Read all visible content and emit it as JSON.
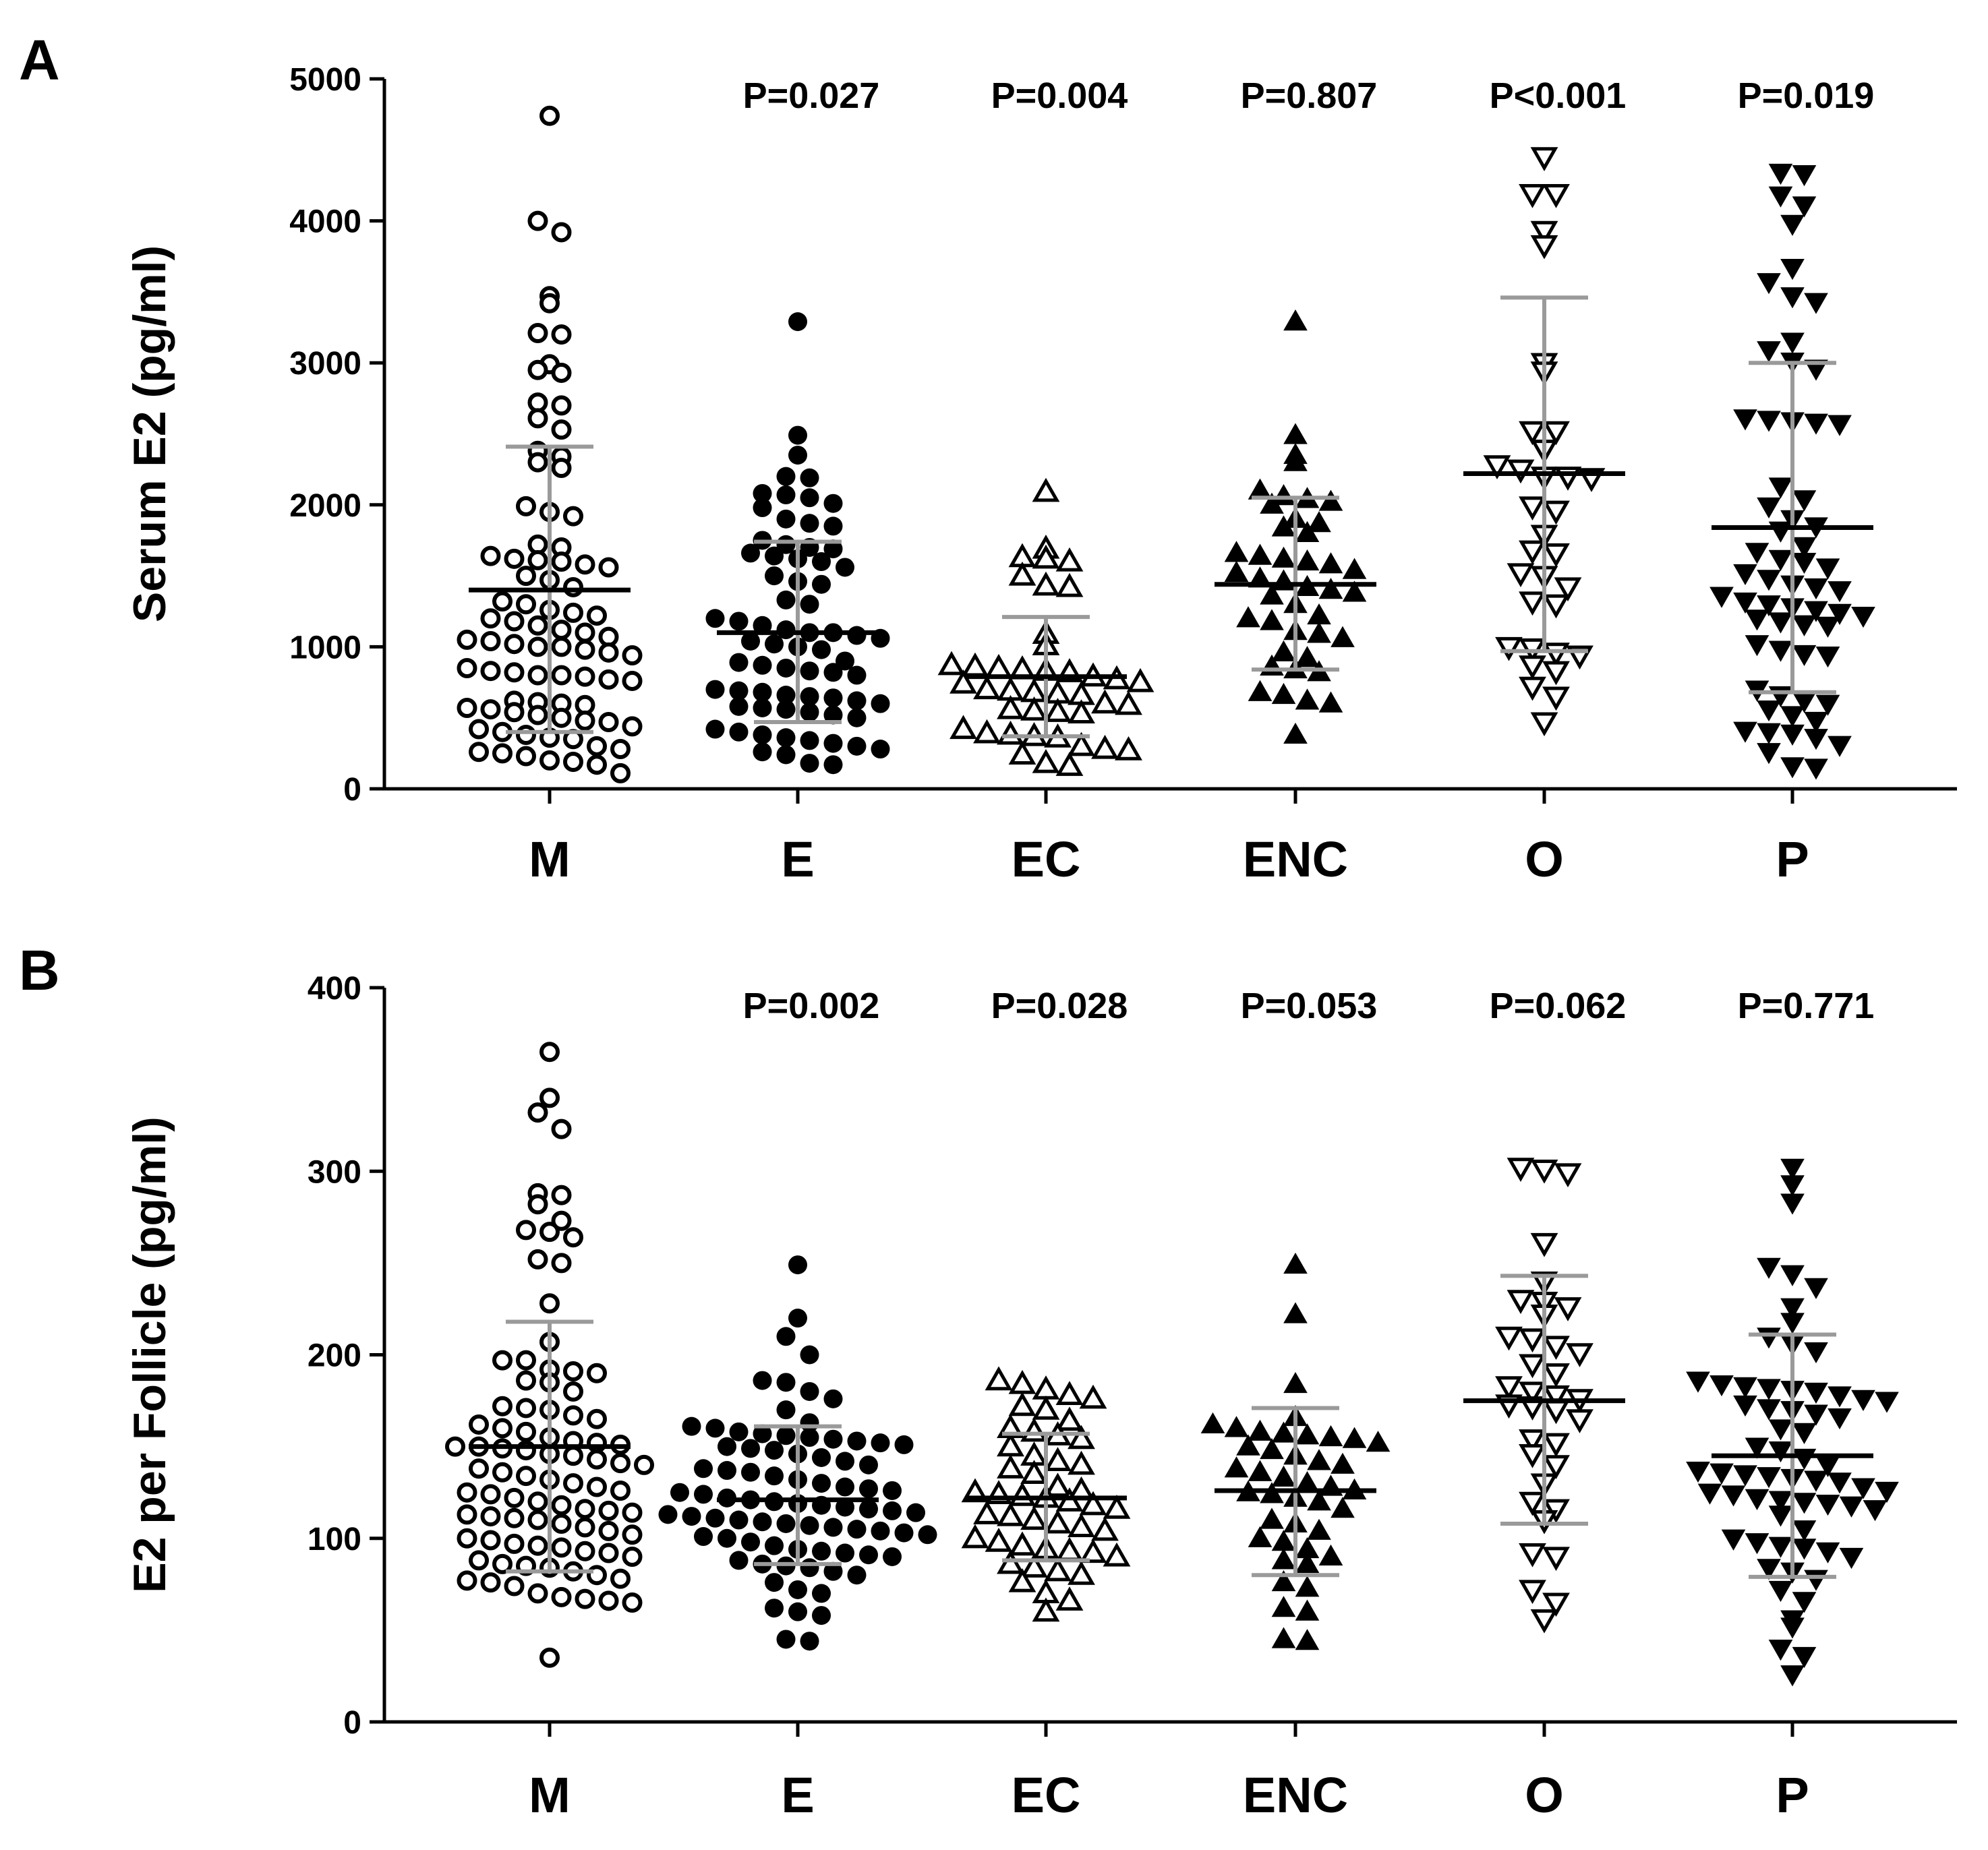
{
  "chart_data": [
    {
      "panel": "A",
      "type": "scatter",
      "ylabel": "Serum E2 (pg/ml)",
      "xlabel": "",
      "ylim": [
        0,
        5000
      ],
      "yticks": [
        0,
        1000,
        2000,
        3000,
        4000,
        5000
      ],
      "grid": false,
      "categories": [
        "M",
        "E",
        "EC",
        "ENC",
        "O",
        "P"
      ],
      "p_values": [
        "",
        "P=0.027",
        "P=0.004",
        "P=0.807",
        "P<0.001",
        "P=0.019"
      ],
      "groups": [
        {
          "name": "M",
          "marker": "circle-open",
          "mean": 1400,
          "sd_low": 400,
          "sd_high": 2410,
          "values": [
            4740,
            4000,
            3920,
            3470,
            3420,
            3210,
            3200,
            2990,
            2950,
            2930,
            2720,
            2700,
            2610,
            2530,
            2380,
            2340,
            2300,
            2260,
            1990,
            1950,
            1920,
            1720,
            1700,
            1640,
            1620,
            1610,
            1600,
            1580,
            1560,
            1500,
            1470,
            1420,
            1320,
            1300,
            1260,
            1240,
            1220,
            1200,
            1180,
            1150,
            1120,
            1100,
            1070,
            1050,
            1040,
            1020,
            1000,
            1000,
            980,
            960,
            940,
            850,
            830,
            820,
            800,
            800,
            790,
            770,
            760,
            620,
            610,
            600,
            590,
            570,
            560,
            540,
            520,
            500,
            480,
            470,
            440,
            420,
            400,
            380,
            360,
            350,
            300,
            280,
            260,
            250,
            230,
            200,
            190,
            170,
            110
          ]
        },
        {
          "name": "E",
          "marker": "circle-filled",
          "mean": 1100,
          "sd_low": 470,
          "sd_high": 1740,
          "values": [
            3290,
            2490,
            2350,
            2200,
            2190,
            2080,
            2070,
            2050,
            2010,
            1980,
            1900,
            1870,
            1850,
            1750,
            1720,
            1700,
            1690,
            1660,
            1640,
            1620,
            1600,
            1560,
            1500,
            1460,
            1440,
            1330,
            1300,
            1200,
            1180,
            1150,
            1120,
            1100,
            1100,
            1080,
            1060,
            1040,
            1020,
            1000,
            980,
            900,
            890,
            870,
            850,
            830,
            820,
            800,
            700,
            690,
            680,
            660,
            650,
            640,
            620,
            600,
            580,
            570,
            560,
            540,
            520,
            500,
            420,
            400,
            380,
            360,
            340,
            320,
            300,
            280,
            260,
            240,
            180,
            170
          ]
        },
        {
          "name": "EC",
          "marker": "triangle-up-open",
          "mean": 790,
          "sd_low": 370,
          "sd_high": 1210,
          "values": [
            2090,
            1690,
            1630,
            1620,
            1600,
            1500,
            1430,
            1420,
            1090,
            1010,
            870,
            860,
            850,
            840,
            830,
            820,
            790,
            770,
            750,
            740,
            700,
            690,
            680,
            670,
            660,
            600,
            590,
            560,
            550,
            540,
            530,
            420,
            390,
            380,
            370,
            360,
            300,
            280,
            270,
            240,
            180,
            160
          ]
        },
        {
          "name": "ENC",
          "marker": "triangle-up-filled",
          "mean": 1440,
          "sd_low": 840,
          "sd_high": 2050,
          "values": [
            3290,
            2490,
            2350,
            2300,
            2100,
            2060,
            2040,
            2020,
            2000,
            1900,
            1870,
            1840,
            1800,
            1660,
            1640,
            1620,
            1600,
            1580,
            1540,
            1520,
            1480,
            1460,
            1420,
            1400,
            1380,
            1360,
            1300,
            1220,
            1200,
            1180,
            1110,
            1090,
            1060,
            960,
            920,
            860,
            840,
            820,
            680,
            660,
            620,
            600,
            380
          ]
        },
        {
          "name": "O",
          "marker": "triangle-down-open",
          "mean": 2220,
          "sd_low": 970,
          "sd_high": 3460,
          "values": [
            4450,
            4190,
            4190,
            3930,
            3830,
            3000,
            2940,
            2520,
            2520,
            2390,
            2280,
            2250,
            2200,
            2200,
            2190,
            1990,
            1960,
            1790,
            1680,
            1660,
            1520,
            1500,
            1420,
            1320,
            1300,
            1000,
            990,
            960,
            940,
            870,
            830,
            720,
            650,
            470
          ]
        },
        {
          "name": "P",
          "marker": "triangle-down-filled",
          "mean": 1840,
          "sd_low": 680,
          "sd_high": 3000,
          "values": [
            4340,
            4330,
            4180,
            4110,
            3980,
            3670,
            3570,
            3470,
            3430,
            3150,
            3090,
            3010,
            2960,
            2610,
            2600,
            2590,
            2580,
            2570,
            2130,
            2040,
            1990,
            1900,
            1850,
            1820,
            1710,
            1670,
            1620,
            1600,
            1560,
            1520,
            1480,
            1440,
            1420,
            1400,
            1360,
            1320,
            1300,
            1280,
            1260,
            1240,
            1220,
            1200,
            1180,
            1160,
            1150,
            1020,
            980,
            950,
            940,
            700,
            660,
            620,
            600,
            560,
            520,
            480,
            410,
            400,
            390,
            360,
            310,
            260,
            160,
            150
          ]
        }
      ]
    },
    {
      "panel": "B",
      "type": "scatter",
      "ylabel": "E2 per Follicle (pg/ml)",
      "xlabel": "",
      "ylim": [
        0,
        400
      ],
      "yticks": [
        0,
        100,
        200,
        300,
        400
      ],
      "grid": false,
      "categories": [
        "M",
        "E",
        "EC",
        "ENC",
        "O",
        "P"
      ],
      "p_values": [
        "",
        "P=0.002",
        "P=0.028",
        "P=0.053",
        "P=0.062",
        "P=0.771"
      ],
      "groups": [
        {
          "name": "M",
          "marker": "circle-open",
          "mean": 150,
          "sd_low": 82,
          "sd_high": 218,
          "values": [
            365,
            340,
            332,
            323,
            288,
            287,
            282,
            273,
            268,
            267,
            264,
            252,
            250,
            228,
            207,
            197,
            197,
            192,
            191,
            190,
            186,
            185,
            180,
            172,
            171,
            170,
            167,
            165,
            162,
            160,
            158,
            155,
            153,
            152,
            151,
            150,
            150,
            149,
            148,
            146,
            145,
            143,
            141,
            140,
            138,
            136,
            134,
            132,
            130,
            128,
            126,
            125,
            124,
            122,
            120,
            118,
            116,
            115,
            114,
            113,
            112,
            111,
            110,
            108,
            106,
            104,
            102,
            100,
            99,
            97,
            96,
            95,
            93,
            92,
            90,
            88,
            86,
            85,
            84,
            82,
            80,
            78,
            77,
            76,
            74,
            70,
            68,
            67,
            66,
            65,
            35
          ]
        },
        {
          "name": "E",
          "marker": "circle-filled",
          "mean": 121,
          "sd_low": 86,
          "sd_high": 161,
          "values": [
            249,
            220,
            210,
            200,
            186,
            185,
            180,
            176,
            170,
            163,
            161,
            160,
            158,
            157,
            156,
            155,
            154,
            153,
            152,
            151,
            150,
            149,
            148,
            146,
            144,
            142,
            140,
            138,
            137,
            136,
            134,
            132,
            130,
            128,
            127,
            126,
            125,
            124,
            122,
            121,
            120,
            119,
            118,
            117,
            116,
            115,
            114,
            113,
            112,
            111,
            110,
            109,
            108,
            107,
            106,
            105,
            104,
            103,
            102,
            101,
            100,
            98,
            96,
            94,
            93,
            92,
            91,
            90,
            88,
            86,
            85,
            84,
            82,
            80,
            76,
            72,
            70,
            62,
            60,
            58,
            45,
            44
          ]
        },
        {
          "name": "EC",
          "marker": "triangle-up-open",
          "mean": 122,
          "sd_low": 88,
          "sd_high": 157,
          "values": [
            186,
            184,
            181,
            178,
            176,
            172,
            170,
            164,
            160,
            158,
            156,
            154,
            150,
            145,
            142,
            140,
            138,
            135,
            128,
            126,
            125,
            124,
            123,
            122,
            120,
            118,
            116,
            113,
            112,
            110,
            108,
            106,
            104,
            100,
            98,
            96,
            94,
            93,
            92,
            90,
            86,
            84,
            82,
            80,
            76,
            70,
            66,
            60
          ]
        },
        {
          "name": "ENC",
          "marker": "triangle-up-filled",
          "mean": 126,
          "sd_low": 80,
          "sd_high": 171,
          "values": [
            249,
            222,
            184,
            166,
            162,
            160,
            158,
            157,
            156,
            155,
            154,
            152,
            150,
            148,
            145,
            142,
            140,
            138,
            136,
            133,
            130,
            128,
            126,
            125,
            124,
            122,
            120,
            116,
            110,
            108,
            104,
            100,
            98,
            94,
            90,
            88,
            86,
            76,
            73,
            62,
            60,
            45,
            44
          ]
        },
        {
          "name": "O",
          "marker": "triangle-down-open",
          "mean": 175,
          "sd_low": 108,
          "sd_high": 243,
          "values": [
            302,
            301,
            299,
            261,
            240,
            230,
            229,
            226,
            222,
            210,
            209,
            205,
            201,
            195,
            190,
            183,
            180,
            178,
            176,
            173,
            172,
            170,
            165,
            154,
            152,
            146,
            140,
            130,
            120,
            116,
            110,
            92,
            90,
            72,
            65,
            56
          ]
        },
        {
          "name": "P",
          "marker": "triangle-down-filled",
          "mean": 145,
          "sd_low": 79,
          "sd_high": 211,
          "values": [
            302,
            293,
            283,
            248,
            244,
            237,
            226,
            218,
            210,
            206,
            202,
            186,
            184,
            183,
            182,
            181,
            180,
            178,
            176,
            175,
            173,
            171,
            170,
            168,
            166,
            160,
            158,
            150,
            148,
            144,
            140,
            137,
            136,
            135,
            134,
            133,
            132,
            131,
            128,
            126,
            125,
            124,
            122,
            121,
            120,
            119,
            118,
            116,
            113,
            105,
            100,
            98,
            96,
            95,
            93,
            90,
            84,
            82,
            78,
            72,
            66,
            56,
            52,
            40,
            36,
            26
          ]
        }
      ]
    }
  ]
}
